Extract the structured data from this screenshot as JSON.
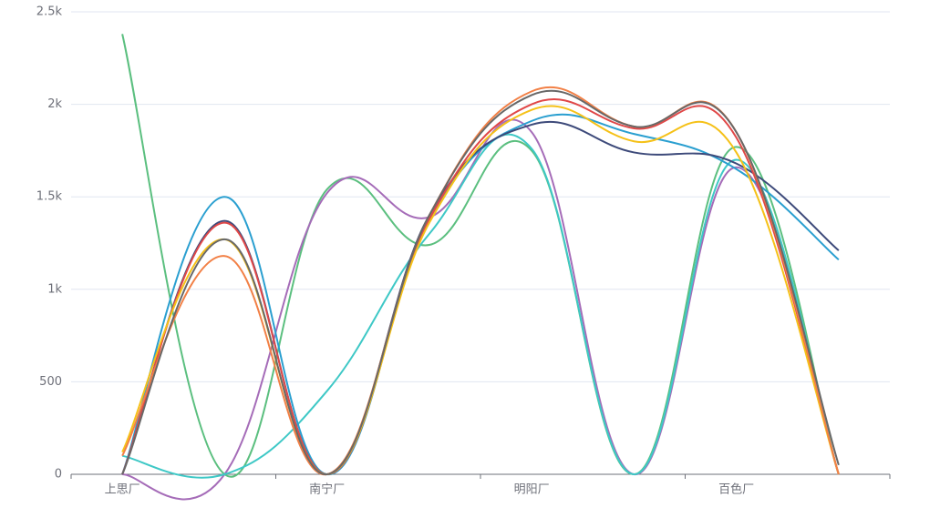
{
  "chart_data": {
    "type": "line",
    "smooth": true,
    "categories": [
      "上思厂",
      null,
      "南宁厂",
      null,
      "明阳厂",
      null,
      "百色厂",
      null
    ],
    "ylim": [
      0,
      2500
    ],
    "yticks": [
      0,
      500,
      {
        "value": 1000,
        "label": "1k"
      },
      {
        "value": 1500,
        "label": "1.5k"
      },
      {
        "value": 2000,
        "label": "2k"
      },
      {
        "value": 2500,
        "label": "2.5k"
      }
    ],
    "grid": true,
    "series": [
      {
        "color": "#5bbf7f",
        "values": [
          2380,
          0,
          1540,
          1240,
          1750,
          0,
          1770,
          0
        ]
      },
      {
        "color": "#a56cb8",
        "values": [
          0,
          0,
          1520,
          1390,
          1850,
          0,
          1660,
          0
        ]
      },
      {
        "color": "#3ec8c6",
        "values": [
          100,
          0,
          450,
          1300,
          1760,
          0,
          1700,
          0
        ]
      },
      {
        "color": "#2a9fd0",
        "values": [
          0,
          1500,
          0,
          1380,
          1910,
          1840,
          1650,
          1160
        ]
      },
      {
        "color": "#3d4a7a",
        "values": [
          0,
          1370,
          0,
          1400,
          1890,
          1740,
          1680,
          1210
        ]
      },
      {
        "color": "#e04848",
        "values": [
          0,
          1360,
          0,
          1380,
          2000,
          1870,
          1820,
          0
        ]
      },
      {
        "color": "#f5c118",
        "values": [
          120,
          1270,
          0,
          1360,
          1970,
          1800,
          1740,
          0
        ]
      },
      {
        "color": "#f28046",
        "values": [
          100,
          1180,
          0,
          1400,
          2070,
          1880,
          1850,
          0
        ]
      },
      {
        "color": "#686868",
        "values": [
          0,
          1270,
          0,
          1400,
          2050,
          1880,
          1850,
          50
        ]
      }
    ]
  }
}
